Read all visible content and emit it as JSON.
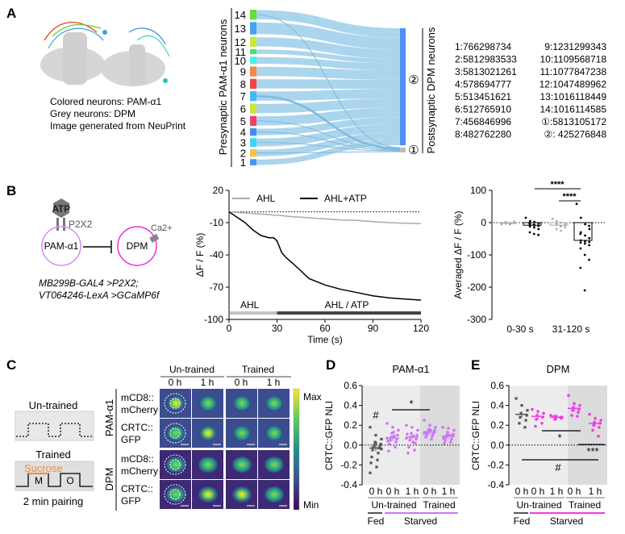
{
  "panels": {
    "A": "A",
    "B": "B",
    "C": "C",
    "D": "D",
    "E": "E"
  },
  "panelA": {
    "caption": [
      "Colored neurons: PAM-α1",
      "Grey neurons: DPM",
      "Image generated from NeuPrint"
    ],
    "sankey": {
      "left_axis_label": "Presynaptic PAM-α1 neurons",
      "right_axis_label": "Postsynaptic DPM neurons",
      "left_nodes": [
        {
          "id": "1",
          "color": "#4d94f0",
          "weight": 5
        },
        {
          "id": "2",
          "color": "#f7c340",
          "weight": 6
        },
        {
          "id": "3",
          "color": "#3fd4f2",
          "weight": 7
        },
        {
          "id": "4",
          "color": "#3f8ff0",
          "weight": 6
        },
        {
          "id": "5",
          "color": "#f03f6b",
          "weight": 8
        },
        {
          "id": "6",
          "color": "#c8e63a",
          "weight": 8
        },
        {
          "id": "7",
          "color": "#44b8f5",
          "weight": 8
        },
        {
          "id": "8",
          "color": "#f04848",
          "weight": 8
        },
        {
          "id": "9",
          "color": "#f08c44",
          "weight": 8
        },
        {
          "id": "10",
          "color": "#4df0e6",
          "weight": 6
        },
        {
          "id": "11",
          "color": "#44e070",
          "weight": 4
        },
        {
          "id": "12",
          "color": "#cce83c",
          "weight": 8
        },
        {
          "id": "13",
          "color": "#44a4f0",
          "weight": 10
        },
        {
          "id": "14",
          "color": "#66dd3a",
          "weight": 8
        }
      ],
      "right_nodes": [
        {
          "id": "①",
          "color": "#bdbdbd"
        },
        {
          "id": "②",
          "color": "#4d8ff5"
        }
      ],
      "flows_to_1": [
        "14",
        "7",
        "5",
        "4",
        "3",
        "2"
      ],
      "flow_color": "#a7d3ec"
    },
    "id_table": [
      [
        "1:766298734",
        "9:1231299343"
      ],
      [
        "2:5812983533",
        "10:1109568718"
      ],
      [
        "3:5813021261",
        "11:1077847238"
      ],
      [
        "4:578694777",
        "12:1047489962"
      ],
      [
        "5:513451621",
        "13:1016118449"
      ],
      [
        "6:512765910",
        "14:1016114585"
      ],
      [
        "7:456846996",
        "①:5813105172"
      ],
      [
        "8:482762280",
        "②: 425276848"
      ]
    ]
  },
  "panelB": {
    "diagram": {
      "atp": "ATP",
      "receptor": "P2X2",
      "pre": "PAM-α1",
      "post": "DPM",
      "ion": "Ca2+",
      "genotype1": "MB299B-GAL4 >P2X2;",
      "genotype2": "VT064246-LexA >GCaMP6f",
      "pre_color": "#d78bf2",
      "post_color": "#ee2be0"
    },
    "trace": {
      "type": "line",
      "xlabel": "Time (s)",
      "ylabel": "ΔF / F (%)",
      "xlim": [
        0,
        120
      ],
      "ylim": [
        -100,
        20
      ],
      "xticks": [
        "0",
        "30",
        "60",
        "90",
        "120"
      ],
      "yticks": [
        "20",
        "-10",
        "-40",
        "-70",
        "-100"
      ],
      "legend": [
        "AHL",
        "AHL+ATP"
      ],
      "legend_placement": "top",
      "stim_labels": [
        "AHL",
        "AHL / ATP"
      ],
      "x": [
        0,
        5,
        10,
        15,
        20,
        25,
        28,
        30,
        33,
        36,
        40,
        45,
        50,
        55,
        60,
        70,
        80,
        90,
        100,
        110,
        120
      ],
      "series": [
        {
          "name": "AHL",
          "color": "#aaaaaa",
          "values": [
            0,
            -0.5,
            -1,
            -1.5,
            -2,
            -2.5,
            -3,
            -3,
            -3.5,
            -4,
            -4.5,
            -5,
            -5.5,
            -6,
            -6.5,
            -7.5,
            -8,
            -9,
            -10,
            -10.5,
            -11
          ]
        },
        {
          "name": "AHL+ATP",
          "color": "#000000",
          "values": [
            0,
            -5,
            -10,
            -17,
            -22,
            -24,
            -24,
            -27,
            -38,
            -43,
            -48,
            -55,
            -62,
            -65,
            -68,
            -72,
            -75,
            -78,
            -80,
            -81,
            -82
          ]
        }
      ]
    },
    "bars": {
      "type": "scatter",
      "ylabel": "Averaged ΔF / F (%)",
      "ylim": [
        -300,
        100
      ],
      "yticks": [
        "100",
        "0",
        "-100",
        "-200",
        "-300"
      ],
      "categories": [
        "0-30 s",
        "31-120 s"
      ],
      "groups": [
        {
          "color": "#aaaaaa",
          "mean": -2,
          "points": [
            -5,
            -3,
            -1,
            0,
            2,
            -4,
            -2,
            1,
            -6,
            3,
            -1,
            -3
          ]
        },
        {
          "color": "#000000",
          "mean": -8,
          "points": [
            15,
            5,
            2,
            -2,
            -5,
            -8,
            -10,
            -12,
            -15,
            -20,
            -30,
            -35,
            -38,
            0,
            -6,
            -9,
            -4
          ]
        },
        {
          "color": "#aaaaaa",
          "mean": -8,
          "points": [
            12,
            5,
            0,
            -3,
            -6,
            -10,
            -15,
            -20,
            -25,
            -8,
            -2,
            -12
          ]
        },
        {
          "color": "#000000",
          "mean": -55,
          "points": [
            58,
            15,
            -5,
            -20,
            -30,
            -40,
            -48,
            -55,
            -58,
            -60,
            -62,
            -65,
            -70,
            -80,
            -100,
            -115,
            -140,
            -210,
            -10,
            -35
          ]
        }
      ],
      "significance": [
        "****",
        "****"
      ]
    }
  },
  "panelC": {
    "untrained_label": "Un-trained",
    "trained_label": "Trained",
    "odor_m": "M",
    "odor_o": "O",
    "sucrose": "Sucrose",
    "sucrose_color": "#f08a3c",
    "pairing": "2 min pairing",
    "col_groups": [
      "Un-trained",
      "Trained"
    ],
    "col_labels": [
      "0 h",
      "1 h",
      "0 h",
      "1 h"
    ],
    "row_groups": [
      "PAM-α1",
      "DPM"
    ],
    "row_labels": [
      [
        "mCD8::",
        "mCherry"
      ],
      [
        "CRTC::",
        "GFP"
      ],
      [
        "mCD8::",
        "mCherry"
      ],
      [
        "CRTC::",
        "GFP"
      ]
    ],
    "colorbar": {
      "max": "Max",
      "min": "Min",
      "colormap": "viridis"
    }
  },
  "panelD": {
    "title": "PAM-α1",
    "ylabel": "CRTC::GFP NLI",
    "ylim": [
      -0.4,
      0.6
    ],
    "yticks": [
      "0.6",
      "0.4",
      "0.2",
      "0.0",
      "-0.2",
      "-0.4"
    ],
    "tick_labels": [
      "0 h",
      "0 h",
      "1 h",
      "0 h",
      "1 h"
    ],
    "group_labels": [
      "Un-trained",
      "Trained"
    ],
    "condition_labels": [
      "Fed",
      "Starved"
    ],
    "fed_color": "#555555",
    "starved_color": "#cc77f5",
    "groups": [
      {
        "mean": -0.03,
        "points": [
          0.18,
          0.1,
          0.06,
          0.03,
          0.01,
          0,
          -0.01,
          -0.02,
          -0.03,
          -0.05,
          -0.08,
          -0.12,
          -0.15,
          -0.18,
          -0.22,
          -0.28,
          0.02,
          -0.04
        ]
      },
      {
        "mean": 0.07,
        "points": [
          0.22,
          0.18,
          0.15,
          0.12,
          0.1,
          0.08,
          0.06,
          0.05,
          0.03,
          0.01,
          -0.02,
          -0.06,
          0.09,
          0.04,
          0.13,
          0.07
        ]
      },
      {
        "mean": 0.08,
        "points": [
          0.2,
          0.18,
          0.15,
          0.12,
          0.1,
          0.08,
          0.06,
          0.05,
          0.02,
          -0.02,
          -0.05,
          -0.08,
          0.09,
          0.11,
          0.03,
          0.07
        ]
      },
      {
        "mean": 0.13,
        "points": [
          0.25,
          0.2,
          0.18,
          0.16,
          0.15,
          0.14,
          0.13,
          0.12,
          0.11,
          0.1,
          0.09,
          0.08,
          0.06,
          0.13,
          0.15,
          0.12
        ]
      },
      {
        "mean": 0.09,
        "points": [
          0.18,
          0.17,
          0.15,
          0.13,
          0.11,
          0.1,
          0.09,
          0.08,
          0.06,
          0.05,
          0.03,
          0.02,
          0.1,
          0.07
        ]
      }
    ],
    "significance": [
      "#",
      "*"
    ]
  },
  "panelE": {
    "title": "DPM",
    "ylabel": "CRTC::GFP NLI",
    "ylim": [
      -0.4,
      0.6
    ],
    "yticks": [
      "0.6",
      "0.4",
      "0.2",
      "0.0",
      "-0.2",
      "-0.4"
    ],
    "tick_labels": [
      "0 h",
      "0 h",
      "1 h",
      "0 h",
      "1 h"
    ],
    "group_labels": [
      "Un-trained",
      "Trained"
    ],
    "condition_labels": [
      "Fed",
      "Starved"
    ],
    "fed_color": "#555555",
    "starved_color": "#f03ce6",
    "groups": [
      {
        "mean": 0.31,
        "points": [
          0.47,
          0.4,
          0.35,
          0.32,
          0.3,
          0.28,
          0.25,
          0.22,
          0.18
        ]
      },
      {
        "mean": 0.29,
        "points": [
          0.36,
          0.34,
          0.32,
          0.3,
          0.28,
          0.26,
          0.22,
          0.19
        ]
      },
      {
        "mean": 0.28,
        "points": [
          0.3,
          0.29,
          0.28,
          0.27,
          0.27,
          0.26,
          0.28,
          0.29
        ]
      },
      {
        "mean": 0.37,
        "points": [
          0.5,
          0.42,
          0.4,
          0.38,
          0.36,
          0.35,
          0.33,
          0.3,
          0.29
        ]
      },
      {
        "mean": 0.22,
        "points": [
          0.31,
          0.27,
          0.25,
          0.23,
          0.22,
          0.2,
          0.18,
          0.15,
          0.09
        ]
      }
    ],
    "significance": [
      "*",
      "***",
      "#"
    ]
  }
}
